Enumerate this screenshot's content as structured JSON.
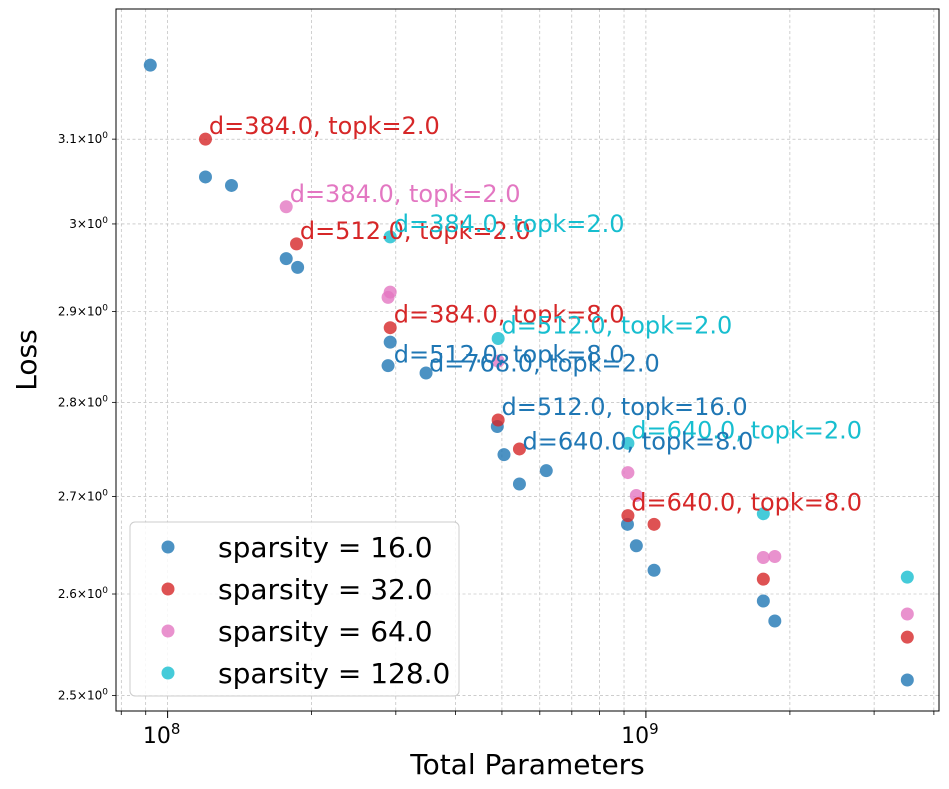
{
  "chart_data": {
    "type": "scatter",
    "title": "",
    "xlabel": "Total Parameters",
    "ylabel": "Loss",
    "xscale": "log",
    "yscale": "log",
    "xlim": [
      78000000,
      4100000000
    ],
    "ylim": [
      2.485,
      3.26
    ],
    "grid": true,
    "legend_position": "bottom-left",
    "x_major_ticks": [
      {
        "value": 100000000,
        "base": "10",
        "exp": "8"
      },
      {
        "value": 1000000000,
        "base": "10",
        "exp": "9"
      }
    ],
    "x_minor_ticks": [
      80000000,
      90000000,
      200000000,
      300000000,
      400000000,
      500000000,
      600000000,
      700000000,
      800000000,
      900000000,
      2000000000,
      3000000000,
      4000000000
    ],
    "y_ticks": [
      {
        "value": 2.5,
        "mant": "2.5",
        "sym": "×",
        "base": "10",
        "exp": "0"
      },
      {
        "value": 2.6,
        "mant": "2.6",
        "sym": "×",
        "base": "10",
        "exp": "0"
      },
      {
        "value": 2.7,
        "mant": "2.7",
        "sym": "×",
        "base": "10",
        "exp": "0"
      },
      {
        "value": 2.8,
        "mant": "2.8",
        "sym": "×",
        "base": "10",
        "exp": "0"
      },
      {
        "value": 2.9,
        "mant": "2.9",
        "sym": "×",
        "base": "10",
        "exp": "0"
      },
      {
        "value": 3.0,
        "mant": "3",
        "sym": "×",
        "base": "10",
        "exp": "0"
      },
      {
        "value": 3.1,
        "mant": "3.1",
        "sym": "×",
        "base": "10",
        "exp": "0"
      }
    ],
    "series": [
      {
        "name": "sparsity = 16.0",
        "color": "#1f77b4",
        "points": [
          [
            92000000,
            3.19
          ],
          [
            120000000,
            3.055
          ],
          [
            136000000,
            3.045
          ],
          [
            177000000,
            2.96
          ],
          [
            187000000,
            2.95
          ],
          [
            289000000,
            2.84
          ],
          [
            292000000,
            2.866
          ],
          [
            347000000,
            2.832
          ],
          [
            489000000,
            2.774
          ],
          [
            505000000,
            2.744
          ],
          [
            544000000,
            2.713
          ],
          [
            619000000,
            2.727
          ],
          [
            915000000,
            2.671
          ],
          [
            955000000,
            2.649
          ],
          [
            1040000000,
            2.624
          ],
          [
            1760000000,
            2.593
          ],
          [
            1860000000,
            2.573
          ],
          [
            3520000000,
            2.515
          ]
        ]
      },
      {
        "name": "sparsity = 32.0",
        "color": "#d62728",
        "points": [
          [
            120000000,
            3.1
          ],
          [
            186000000,
            2.977
          ],
          [
            292000000,
            2.882
          ],
          [
            491000000,
            2.781
          ],
          [
            544000000,
            2.75
          ],
          [
            917000000,
            2.68
          ],
          [
            1040000000,
            2.671
          ],
          [
            1760000000,
            2.615
          ],
          [
            3520000000,
            2.557
          ]
        ]
      },
      {
        "name": "sparsity = 64.0",
        "color": "#e377c2",
        "points": [
          [
            177000000,
            3.02
          ],
          [
            289000000,
            2.916
          ],
          [
            292000000,
            2.922
          ],
          [
            491000000,
            2.845
          ],
          [
            917000000,
            2.725
          ],
          [
            955000000,
            2.701
          ],
          [
            1760000000,
            2.637
          ],
          [
            1860000000,
            2.638
          ],
          [
            3520000000,
            2.58
          ]
        ]
      },
      {
        "name": "sparsity = 128.0",
        "color": "#17becf",
        "points": [
          [
            292000000,
            2.985
          ],
          [
            491000000,
            2.87
          ],
          [
            917000000,
            2.756
          ],
          [
            1760000000,
            2.682
          ],
          [
            3520000000,
            2.617
          ]
        ]
      }
    ],
    "annotations": [
      {
        "text": "d=384.0, topk=2.0",
        "x": 122000000,
        "y": 3.1,
        "color": "#d62728"
      },
      {
        "text": "d=384.0, topk=2.0",
        "x": 180000000,
        "y": 3.02,
        "color": "#e377c2"
      },
      {
        "text": "d=512.0, topk=2.0",
        "x": 189000000,
        "y": 2.977,
        "color": "#d62728"
      },
      {
        "text": "d=384.0, topk=2.0",
        "x": 297000000,
        "y": 2.985,
        "color": "#17becf"
      },
      {
        "text": "d=384.0, topk=8.0",
        "x": 297000000,
        "y": 2.882,
        "color": "#d62728"
      },
      {
        "text": "d=512.0, topk=2.0",
        "x": 499000000,
        "y": 2.87,
        "color": "#17becf"
      },
      {
        "text": "d=512.0, topk=8.0",
        "x": 297000000,
        "y": 2.838,
        "color": "#1f77b4"
      },
      {
        "text": "d=768.0, topk=2.0",
        "x": 352000000,
        "y": 2.828,
        "color": "#1f77b4"
      },
      {
        "text": "d=512.0, topk=16.0",
        "x": 499000000,
        "y": 2.781,
        "color": "#1f77b4"
      },
      {
        "text": "d=640.0, topk=2.0",
        "x": 932000000,
        "y": 2.756,
        "color": "#17becf"
      },
      {
        "text": "d=640.0, topk=8.0",
        "x": 552000000,
        "y": 2.744,
        "color": "#1f77b4"
      },
      {
        "text": "d=640.0, topk=8.0",
        "x": 932000000,
        "y": 2.68,
        "color": "#d62728"
      }
    ]
  }
}
